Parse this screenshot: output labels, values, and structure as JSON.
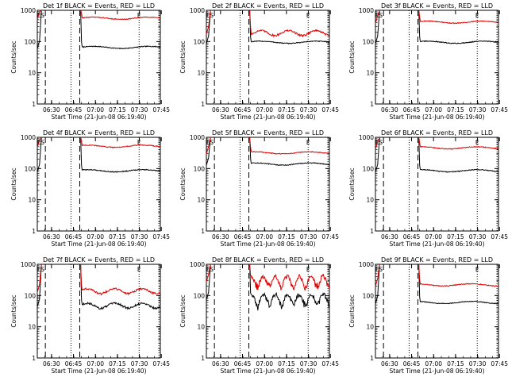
{
  "colors": {
    "events": "#000000",
    "lld": "#e00000",
    "axis": "#000000",
    "background": "#ffffff"
  },
  "chart_data": [
    {
      "type": "line",
      "title": "Det 1f BLACK = Events, RED = LLD",
      "xlabel": "Start Time (21-Jun-08 06:19:40)",
      "ylabel": "Counts/sec",
      "y_scale": "log",
      "ylim": [
        1,
        1000
      ],
      "y_ticks": [
        "1",
        "10",
        "100",
        "1000"
      ],
      "x_ticks": [
        "06:30",
        "06:45",
        "07:00",
        "07:15",
        "07:30",
        "07:45"
      ],
      "xlim_minutes": [
        0,
        84
      ],
      "markers": [
        "E",
        "S",
        "E"
      ],
      "series": [
        {
          "name": "Events",
          "level": 65,
          "style": "flat"
        },
        {
          "name": "LLD",
          "level": 560,
          "style": "flat"
        }
      ]
    },
    {
      "type": "line",
      "title": "Det 2f BLACK = Events, RED = LLD",
      "xlabel": "Start Time (21-Jun-08 06:19:40)",
      "ylabel": "Counts/sec",
      "y_scale": "log",
      "ylim": [
        1,
        1000
      ],
      "y_ticks": [
        "1",
        "10",
        "100",
        "1000"
      ],
      "x_ticks": [
        "06:30",
        "06:45",
        "07:00",
        "07:15",
        "07:30",
        "07:45"
      ],
      "xlim_minutes": [
        0,
        84
      ],
      "markers": [
        "E",
        "S",
        "E"
      ],
      "series": [
        {
          "name": "Events",
          "level": 95,
          "style": "flat"
        },
        {
          "name": "LLD",
          "level": 190,
          "style": "wavy"
        }
      ]
    },
    {
      "type": "line",
      "title": "Det 3f BLACK = Events, RED = LLD",
      "xlabel": "Start Time (21-Jun-08 06:19:40)",
      "ylabel": "Counts/sec",
      "y_scale": "log",
      "ylim": [
        1,
        1000
      ],
      "y_ticks": [
        "1",
        "10",
        "100",
        "1000"
      ],
      "x_ticks": [
        "06:30",
        "06:45",
        "07:00",
        "07:15",
        "07:30",
        "07:45"
      ],
      "xlim_minutes": [
        0,
        84
      ],
      "markers": [
        "E",
        "S",
        "E"
      ],
      "series": [
        {
          "name": "Events",
          "level": 95,
          "style": "flat"
        },
        {
          "name": "LLD",
          "level": 420,
          "style": "flat"
        }
      ]
    },
    {
      "type": "line",
      "title": "Det 4f BLACK = Events, RED = LLD",
      "xlabel": "Start Time (21-Jun-08 06:19:40)",
      "ylabel": "Counts/sec",
      "y_scale": "log",
      "ylim": [
        1,
        1000
      ],
      "y_ticks": [
        "1",
        "10",
        "100",
        "1000"
      ],
      "x_ticks": [
        "06:30",
        "06:45",
        "07:00",
        "07:15",
        "07:30",
        "07:45"
      ],
      "xlim_minutes": [
        0,
        84
      ],
      "markers": [
        "E",
        "S",
        "E"
      ],
      "series": [
        {
          "name": "Events",
          "level": 85,
          "style": "flat"
        },
        {
          "name": "LLD",
          "level": 520,
          "style": "flat"
        }
      ]
    },
    {
      "type": "line",
      "title": "Det 5f BLACK = Events, RED = LLD",
      "xlabel": "Start Time (21-Jun-08 06:19:40)",
      "ylabel": "Counts/sec",
      "y_scale": "log",
      "ylim": [
        1,
        1000
      ],
      "y_ticks": [
        "1",
        "10",
        "100",
        "1000"
      ],
      "x_ticks": [
        "06:30",
        "06:45",
        "07:00",
        "07:15",
        "07:30",
        "07:45"
      ],
      "xlim_minutes": [
        0,
        84
      ],
      "markers": [
        "E",
        "S",
        "E"
      ],
      "series": [
        {
          "name": "Events",
          "level": 140,
          "style": "flat"
        },
        {
          "name": "LLD",
          "level": 320,
          "style": "flat"
        }
      ]
    },
    {
      "type": "line",
      "title": "Det 6f BLACK = Events, RED = LLD",
      "xlabel": "Start Time (21-Jun-08 06:19:40)",
      "ylabel": "Counts/sec",
      "y_scale": "log",
      "ylim": [
        1,
        1000
      ],
      "y_ticks": [
        "1",
        "10",
        "100",
        "1000"
      ],
      "x_ticks": [
        "06:30",
        "06:45",
        "07:00",
        "07:15",
        "07:30",
        "07:45"
      ],
      "xlim_minutes": [
        0,
        84
      ],
      "markers": [
        "E",
        "S",
        "E"
      ],
      "series": [
        {
          "name": "Events",
          "level": 85,
          "style": "flat"
        },
        {
          "name": "LLD",
          "level": 460,
          "style": "flat"
        }
      ]
    },
    {
      "type": "line",
      "title": "Det 7f BLACK = Events, RED = LLD",
      "xlabel": "Start Time (21-Jun-08 06:19:40)",
      "ylabel": "Counts/sec",
      "y_scale": "log",
      "ylim": [
        1,
        1000
      ],
      "y_ticks": [
        "1",
        "10",
        "100",
        "1000"
      ],
      "x_ticks": [
        "06:30",
        "06:45",
        "07:00",
        "07:15",
        "07:30",
        "07:45"
      ],
      "xlim_minutes": [
        0,
        84
      ],
      "markers": [
        "E",
        "S",
        "E"
      ],
      "series": [
        {
          "name": "Events",
          "level": 48,
          "style": "wavy"
        },
        {
          "name": "LLD",
          "level": 140,
          "style": "wavy"
        }
      ]
    },
    {
      "type": "line",
      "title": "Det 8f BLACK = Events, RED = LLD",
      "xlabel": "Start Time (21-Jun-08 06:19:40)",
      "ylabel": "Counts/sec",
      "y_scale": "log",
      "ylim": [
        1,
        1000
      ],
      "y_ticks": [
        "1",
        "10",
        "100",
        "1000"
      ],
      "x_ticks": [
        "06:30",
        "06:45",
        "07:00",
        "07:15",
        "07:30",
        "07:45"
      ],
      "xlim_minutes": [
        0,
        84
      ],
      "markers": [
        "E",
        "S",
        "E"
      ],
      "series": [
        {
          "name": "Events",
          "level": 80,
          "style": "noisy"
        },
        {
          "name": "LLD",
          "level": 300,
          "style": "noisy"
        }
      ]
    },
    {
      "type": "line",
      "title": "Det 9f BLACK = Events, RED = LLD",
      "xlabel": "Start Time (21-Jun-08 06:19:40)",
      "ylabel": "Counts/sec",
      "y_scale": "log",
      "ylim": [
        1,
        1000
      ],
      "y_ticks": [
        "1",
        "10",
        "100",
        "1000"
      ],
      "x_ticks": [
        "06:30",
        "06:45",
        "07:00",
        "07:15",
        "07:30",
        "07:45"
      ],
      "xlim_minutes": [
        0,
        84
      ],
      "markers": [
        "E",
        "S",
        "E"
      ],
      "series": [
        {
          "name": "Events",
          "level": 60,
          "style": "flat"
        },
        {
          "name": "LLD",
          "level": 220,
          "style": "flat"
        }
      ]
    }
  ]
}
